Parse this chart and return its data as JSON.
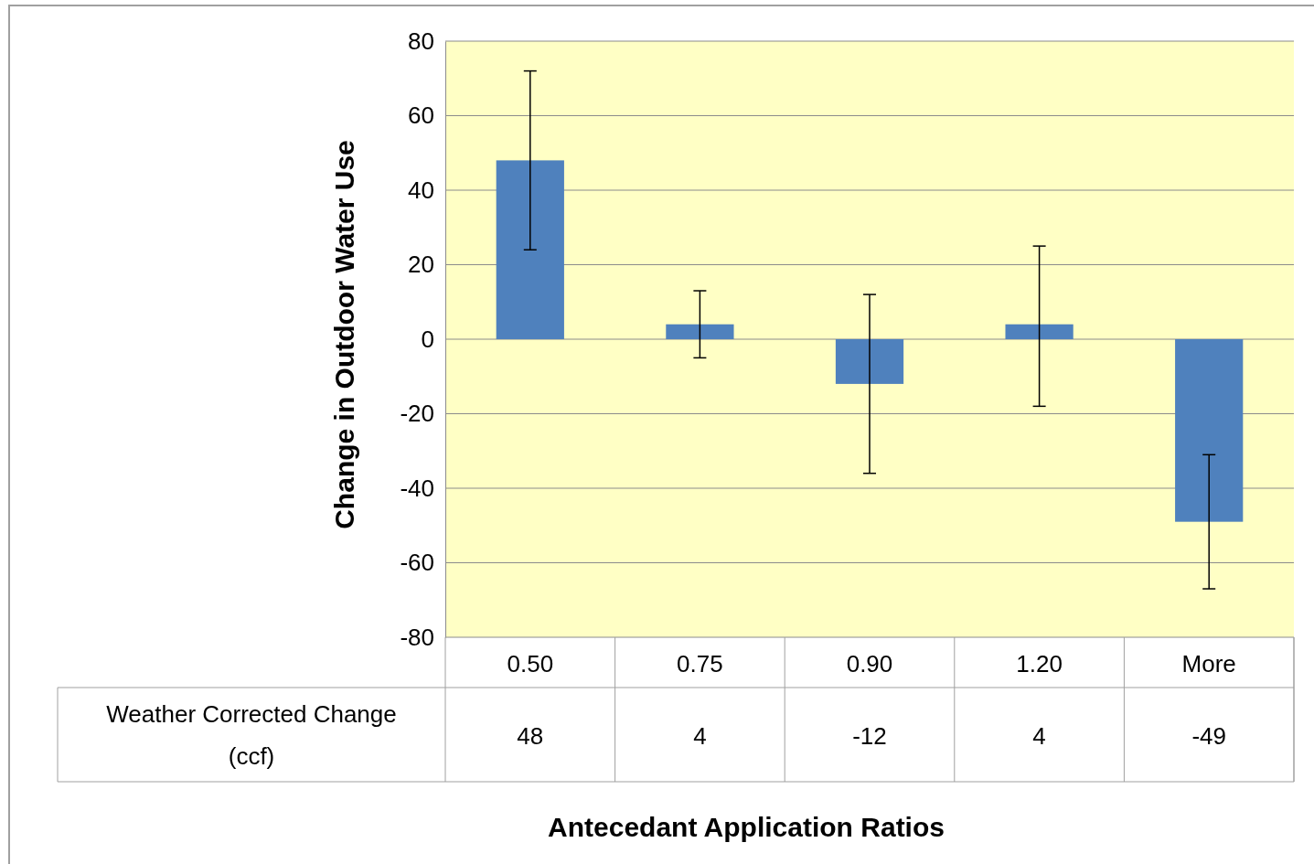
{
  "chart_data": {
    "type": "bar",
    "xlabel": "Antecedant Application Ratios",
    "ylabel": "Change in Outdoor Water Use",
    "categories": [
      "0.50",
      "0.75",
      "0.90",
      "1.20",
      "More"
    ],
    "series": [
      {
        "name": "Weather Corrected Change (ccf)",
        "color": "#4f81bd",
        "values": [
          48,
          4,
          -12,
          4,
          -49
        ],
        "errors": [
          [
            24,
            72
          ],
          [
            -5,
            13
          ],
          [
            -36,
            12
          ],
          [
            -18,
            25
          ],
          [
            -67,
            -31
          ]
        ]
      }
    ],
    "ylim": [
      -80,
      80
    ],
    "yticks": [
      -80,
      -60,
      -40,
      -20,
      0,
      20,
      40,
      60,
      80
    ],
    "grid": "y",
    "data_labels": true
  }
}
